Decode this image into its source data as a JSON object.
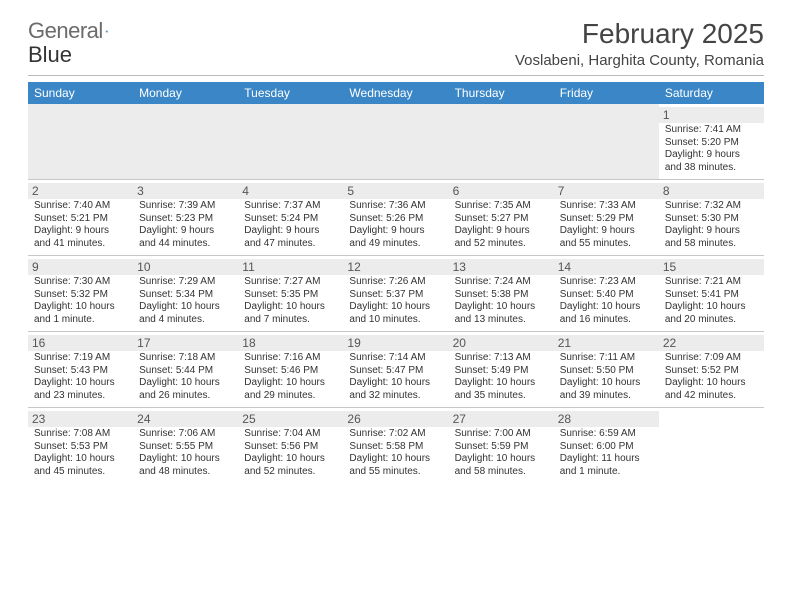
{
  "logo": {
    "text1": "General",
    "text2": "Blue"
  },
  "title": {
    "month": "February 2025",
    "location": "Voslabeni, Harghita County, Romania"
  },
  "colors": {
    "header_bg": "#3a86c6",
    "header_fg": "#ffffff",
    "rule": "#c7c7c7",
    "daybg": "#ececec"
  },
  "weekdays": [
    "Sunday",
    "Monday",
    "Tuesday",
    "Wednesday",
    "Thursday",
    "Friday",
    "Saturday"
  ],
  "weeks": [
    [
      null,
      null,
      null,
      null,
      null,
      null,
      {
        "n": "1",
        "sunrise": "Sunrise: 7:41 AM",
        "sunset": "Sunset: 5:20 PM",
        "daylight": "Daylight: 9 hours and 38 minutes."
      }
    ],
    [
      {
        "n": "2",
        "sunrise": "Sunrise: 7:40 AM",
        "sunset": "Sunset: 5:21 PM",
        "daylight": "Daylight: 9 hours and 41 minutes."
      },
      {
        "n": "3",
        "sunrise": "Sunrise: 7:39 AM",
        "sunset": "Sunset: 5:23 PM",
        "daylight": "Daylight: 9 hours and 44 minutes."
      },
      {
        "n": "4",
        "sunrise": "Sunrise: 7:37 AM",
        "sunset": "Sunset: 5:24 PM",
        "daylight": "Daylight: 9 hours and 47 minutes."
      },
      {
        "n": "5",
        "sunrise": "Sunrise: 7:36 AM",
        "sunset": "Sunset: 5:26 PM",
        "daylight": "Daylight: 9 hours and 49 minutes."
      },
      {
        "n": "6",
        "sunrise": "Sunrise: 7:35 AM",
        "sunset": "Sunset: 5:27 PM",
        "daylight": "Daylight: 9 hours and 52 minutes."
      },
      {
        "n": "7",
        "sunrise": "Sunrise: 7:33 AM",
        "sunset": "Sunset: 5:29 PM",
        "daylight": "Daylight: 9 hours and 55 minutes."
      },
      {
        "n": "8",
        "sunrise": "Sunrise: 7:32 AM",
        "sunset": "Sunset: 5:30 PM",
        "daylight": "Daylight: 9 hours and 58 minutes."
      }
    ],
    [
      {
        "n": "9",
        "sunrise": "Sunrise: 7:30 AM",
        "sunset": "Sunset: 5:32 PM",
        "daylight": "Daylight: 10 hours and 1 minute."
      },
      {
        "n": "10",
        "sunrise": "Sunrise: 7:29 AM",
        "sunset": "Sunset: 5:34 PM",
        "daylight": "Daylight: 10 hours and 4 minutes."
      },
      {
        "n": "11",
        "sunrise": "Sunrise: 7:27 AM",
        "sunset": "Sunset: 5:35 PM",
        "daylight": "Daylight: 10 hours and 7 minutes."
      },
      {
        "n": "12",
        "sunrise": "Sunrise: 7:26 AM",
        "sunset": "Sunset: 5:37 PM",
        "daylight": "Daylight: 10 hours and 10 minutes."
      },
      {
        "n": "13",
        "sunrise": "Sunrise: 7:24 AM",
        "sunset": "Sunset: 5:38 PM",
        "daylight": "Daylight: 10 hours and 13 minutes."
      },
      {
        "n": "14",
        "sunrise": "Sunrise: 7:23 AM",
        "sunset": "Sunset: 5:40 PM",
        "daylight": "Daylight: 10 hours and 16 minutes."
      },
      {
        "n": "15",
        "sunrise": "Sunrise: 7:21 AM",
        "sunset": "Sunset: 5:41 PM",
        "daylight": "Daylight: 10 hours and 20 minutes."
      }
    ],
    [
      {
        "n": "16",
        "sunrise": "Sunrise: 7:19 AM",
        "sunset": "Sunset: 5:43 PM",
        "daylight": "Daylight: 10 hours and 23 minutes."
      },
      {
        "n": "17",
        "sunrise": "Sunrise: 7:18 AM",
        "sunset": "Sunset: 5:44 PM",
        "daylight": "Daylight: 10 hours and 26 minutes."
      },
      {
        "n": "18",
        "sunrise": "Sunrise: 7:16 AM",
        "sunset": "Sunset: 5:46 PM",
        "daylight": "Daylight: 10 hours and 29 minutes."
      },
      {
        "n": "19",
        "sunrise": "Sunrise: 7:14 AM",
        "sunset": "Sunset: 5:47 PM",
        "daylight": "Daylight: 10 hours and 32 minutes."
      },
      {
        "n": "20",
        "sunrise": "Sunrise: 7:13 AM",
        "sunset": "Sunset: 5:49 PM",
        "daylight": "Daylight: 10 hours and 35 minutes."
      },
      {
        "n": "21",
        "sunrise": "Sunrise: 7:11 AM",
        "sunset": "Sunset: 5:50 PM",
        "daylight": "Daylight: 10 hours and 39 minutes."
      },
      {
        "n": "22",
        "sunrise": "Sunrise: 7:09 AM",
        "sunset": "Sunset: 5:52 PM",
        "daylight": "Daylight: 10 hours and 42 minutes."
      }
    ],
    [
      {
        "n": "23",
        "sunrise": "Sunrise: 7:08 AM",
        "sunset": "Sunset: 5:53 PM",
        "daylight": "Daylight: 10 hours and 45 minutes."
      },
      {
        "n": "24",
        "sunrise": "Sunrise: 7:06 AM",
        "sunset": "Sunset: 5:55 PM",
        "daylight": "Daylight: 10 hours and 48 minutes."
      },
      {
        "n": "25",
        "sunrise": "Sunrise: 7:04 AM",
        "sunset": "Sunset: 5:56 PM",
        "daylight": "Daylight: 10 hours and 52 minutes."
      },
      {
        "n": "26",
        "sunrise": "Sunrise: 7:02 AM",
        "sunset": "Sunset: 5:58 PM",
        "daylight": "Daylight: 10 hours and 55 minutes."
      },
      {
        "n": "27",
        "sunrise": "Sunrise: 7:00 AM",
        "sunset": "Sunset: 5:59 PM",
        "daylight": "Daylight: 10 hours and 58 minutes."
      },
      {
        "n": "28",
        "sunrise": "Sunrise: 6:59 AM",
        "sunset": "Sunset: 6:00 PM",
        "daylight": "Daylight: 11 hours and 1 minute."
      },
      null
    ]
  ]
}
